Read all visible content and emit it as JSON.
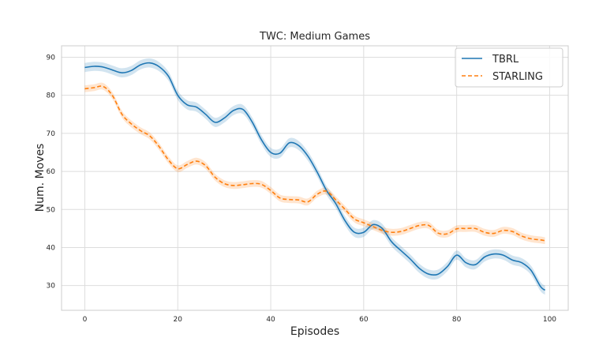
{
  "chart_data": {
    "type": "line",
    "title": "TWC: Medium Games",
    "xlabel": "Episodes",
    "ylabel": "Num. Moves",
    "xlim": [
      -5,
      104
    ],
    "ylim": [
      23.5,
      93
    ],
    "xticks": [
      0,
      20,
      40,
      60,
      80,
      100
    ],
    "yticks": [
      30,
      40,
      50,
      60,
      70,
      80,
      90
    ],
    "grid": true,
    "legend_position": "top-right",
    "series": [
      {
        "name": "TBRL",
        "color": "#1f77b4",
        "line_style": "solid",
        "band": 1.2,
        "x": [
          0,
          2,
          4,
          6,
          8,
          10,
          12,
          14,
          16,
          18,
          20,
          22,
          24,
          26,
          28,
          30,
          32,
          34,
          36,
          38,
          40,
          42,
          44,
          46,
          48,
          50,
          52,
          54,
          56,
          58,
          60,
          62,
          64,
          66,
          68,
          70,
          72,
          74,
          76,
          78,
          80,
          82,
          84,
          86,
          88,
          90,
          92,
          94,
          96,
          98,
          99
        ],
        "values": [
          87.3,
          87.6,
          87.4,
          86.6,
          85.9,
          86.5,
          88.0,
          88.5,
          87.5,
          85.0,
          80.0,
          77.5,
          76.9,
          75.0,
          72.9,
          74.0,
          76.0,
          76.3,
          73.0,
          68.3,
          65.0,
          64.8,
          67.5,
          66.8,
          64.0,
          59.8,
          55.0,
          51.5,
          47.0,
          44.0,
          44.0,
          46.0,
          45.0,
          41.5,
          39.2,
          37.0,
          34.5,
          33.0,
          33.0,
          35.0,
          38.0,
          36.0,
          35.5,
          37.5,
          38.3,
          38.0,
          36.7,
          36.0,
          34.0,
          29.8,
          28.8
        ]
      },
      {
        "name": "STARLING",
        "color": "#ff7f0e",
        "line_style": "dashed",
        "band": 0.9,
        "x": [
          0,
          2,
          4,
          6,
          8,
          10,
          12,
          14,
          16,
          18,
          20,
          22,
          24,
          26,
          28,
          30,
          32,
          34,
          36,
          38,
          40,
          42,
          44,
          46,
          48,
          50,
          52,
          54,
          56,
          58,
          60,
          62,
          64,
          66,
          68,
          70,
          72,
          74,
          76,
          78,
          80,
          82,
          84,
          86,
          88,
          90,
          92,
          94,
          96,
          98,
          99
        ],
        "values": [
          81.7,
          82.0,
          82.3,
          79.8,
          75.0,
          72.5,
          70.7,
          69.3,
          66.5,
          63.0,
          60.7,
          61.8,
          62.7,
          61.5,
          58.5,
          56.8,
          56.3,
          56.5,
          56.8,
          56.6,
          55.0,
          53.0,
          52.6,
          52.5,
          52.0,
          54.0,
          54.8,
          52.5,
          50.0,
          47.5,
          46.5,
          45.5,
          44.5,
          44.0,
          44.2,
          45.0,
          45.8,
          45.8,
          43.8,
          43.6,
          44.9,
          45.0,
          45.0,
          44.0,
          43.7,
          44.5,
          44.2,
          43.0,
          42.3,
          42.0,
          41.8
        ]
      }
    ]
  }
}
